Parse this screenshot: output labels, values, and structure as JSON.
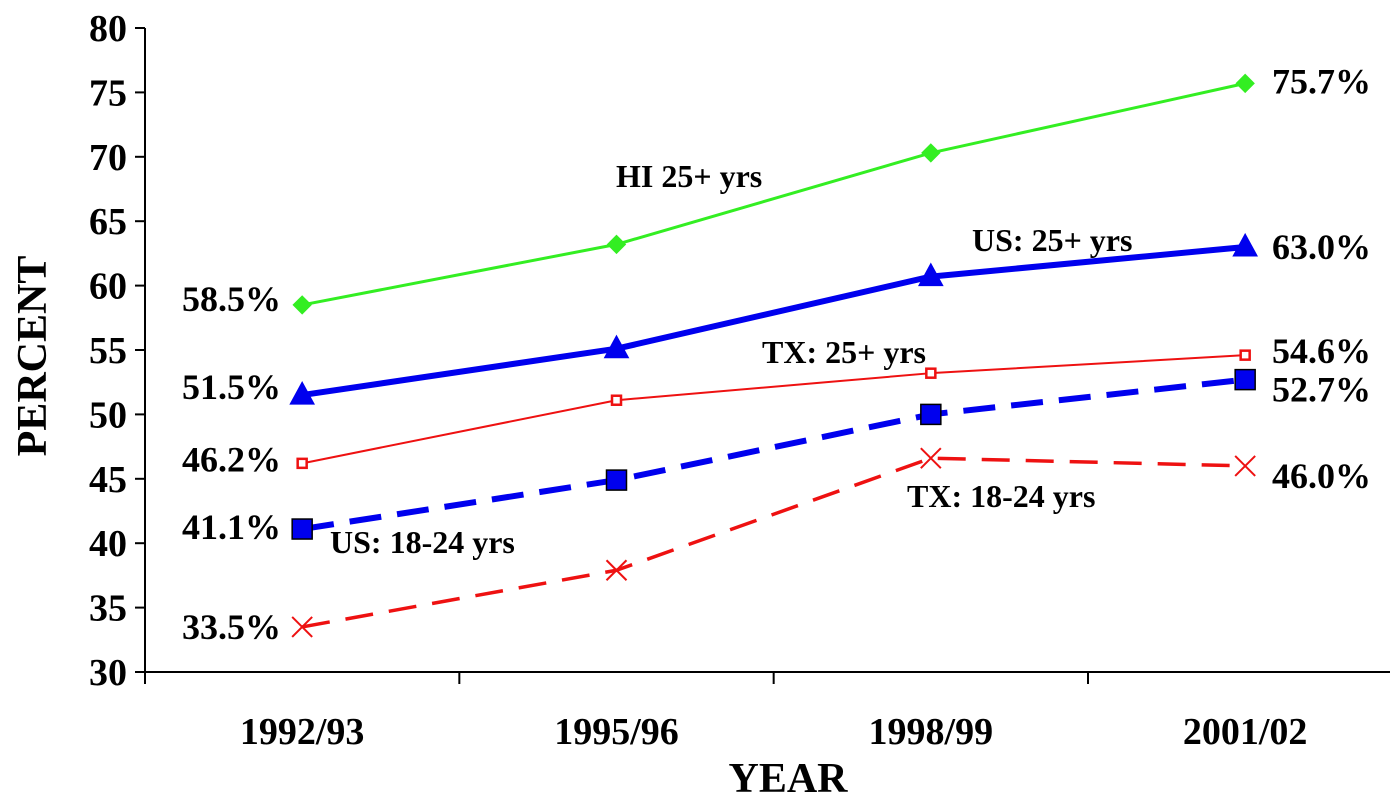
{
  "chart_data": {
    "type": "line",
    "categories": [
      "1992/93",
      "1995/96",
      "1998/99",
      "2001/02"
    ],
    "xlabel": "YEAR",
    "ylabel": "PERCENT",
    "ylim": [
      30,
      80
    ],
    "yticks": [
      "30",
      "35",
      "40",
      "45",
      "50",
      "55",
      "60",
      "65",
      "70",
      "75",
      "80"
    ],
    "grid": false,
    "legend": "none",
    "series": [
      {
        "name": "HI 25+ yrs",
        "values": [
          58.5,
          63.2,
          70.3,
          75.7
        ],
        "color": "#33ee22",
        "marker": "diamond",
        "line": "solid",
        "start_label": "58.5%",
        "end_label": "75.7%"
      },
      {
        "name": "US: 25+ yrs",
        "values": [
          51.5,
          55.1,
          60.7,
          63.0
        ],
        "color": "#0000ee",
        "marker": "triangle",
        "line": "solid-thick",
        "start_label": "51.5%",
        "end_label": "63.0%"
      },
      {
        "name": "TX: 25+ yrs",
        "values": [
          46.2,
          51.1,
          53.2,
          54.6
        ],
        "color": "#ee1111",
        "marker": "small-square",
        "line": "solid-thin",
        "start_label": "46.2%",
        "end_label": "54.6%"
      },
      {
        "name": "US: 18-24 yrs",
        "values": [
          41.1,
          44.9,
          50.0,
          52.7
        ],
        "color": "#0000ee",
        "marker": "square",
        "line": "dashed-thick",
        "start_label": "41.1%",
        "end_label": "52.7%"
      },
      {
        "name": "TX: 18-24 yrs",
        "values": [
          33.5,
          37.9,
          46.6,
          46.0
        ],
        "color": "#ee1111",
        "marker": "x",
        "line": "dashed",
        "start_label": "33.5%",
        "end_label": "46.0%"
      }
    ]
  }
}
